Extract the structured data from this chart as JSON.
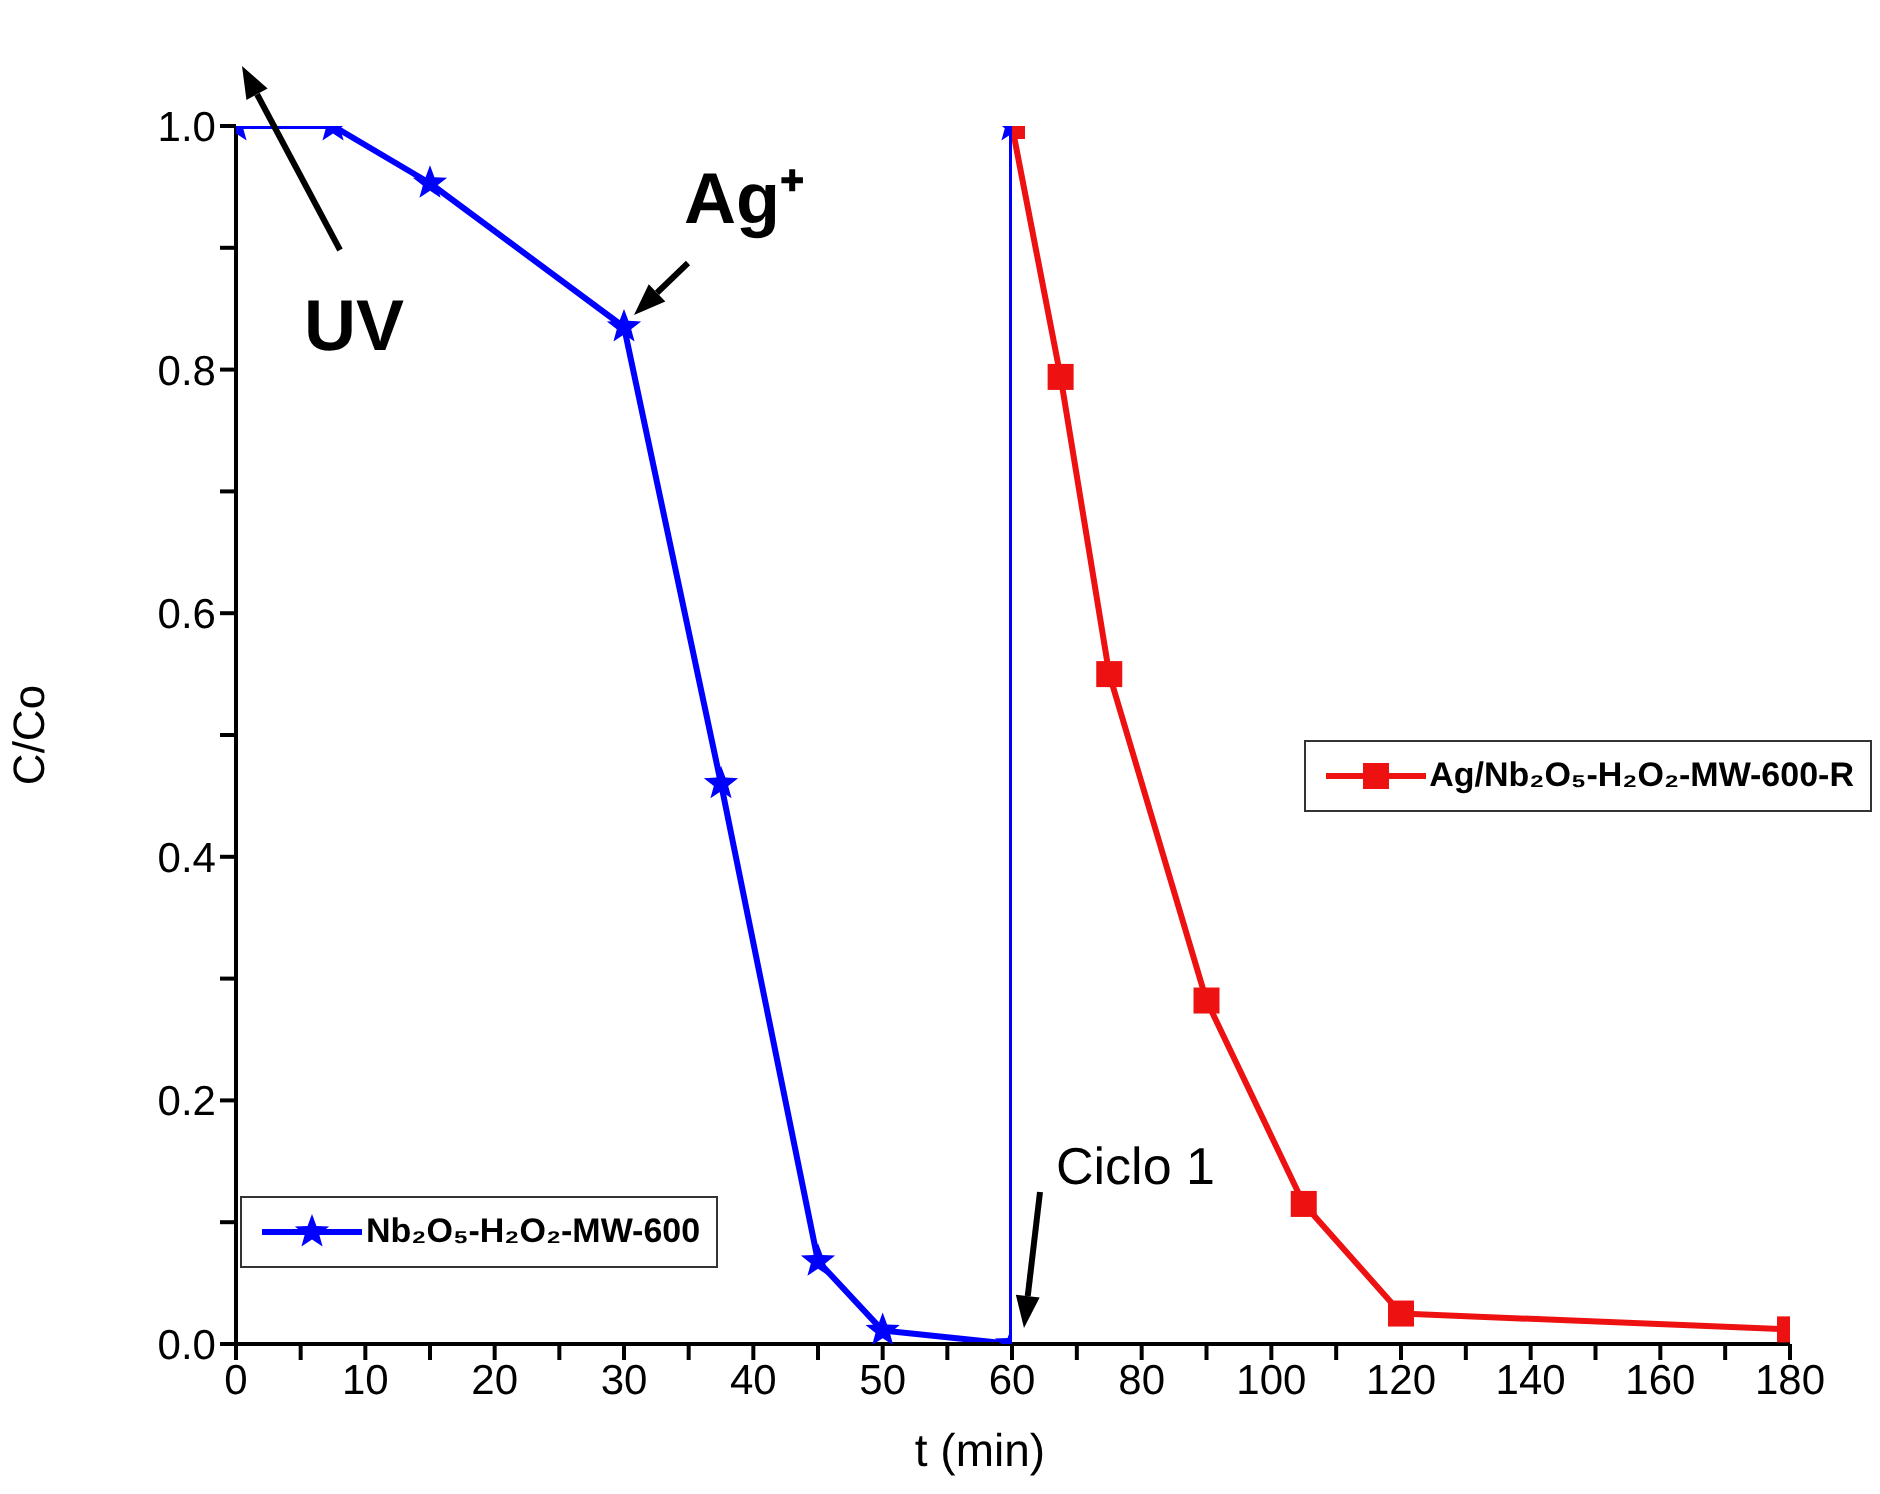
{
  "chart_data": [
    {
      "type": "line",
      "ylabel": "C/Co",
      "xlabel": "t (min)",
      "xlim": [
        0,
        60
      ],
      "xticks": [
        0,
        {
          "value": 5,
          "label": null
        },
        10,
        {
          "value": 15,
          "label": null
        },
        20,
        {
          "value": 25,
          "label": null
        },
        30,
        {
          "value": 35,
          "label": null
        },
        40,
        {
          "value": 45,
          "label": null
        },
        50,
        {
          "value": 55,
          "label": null
        },
        60
      ],
      "ylim": [
        0,
        1
      ],
      "yticks": [
        {
          "value": 0,
          "label": "0.0"
        },
        {
          "value": 0.1,
          "label": null
        },
        0.2,
        {
          "value": 0.3,
          "label": null
        },
        0.4,
        {
          "value": 0.5,
          "label": null
        },
        0.6,
        {
          "value": 0.7,
          "label": null
        },
        0.8,
        {
          "value": 0.9,
          "label": null
        },
        {
          "value": 1,
          "label": "1.0"
        }
      ],
      "grid": false,
      "legend": "bottom left",
      "marker": "star",
      "line_style": "solid",
      "series": [
        {
          "name": "Nb₂O₅-H₂O₂-MW-600",
          "color": "#0000ff",
          "x": [
            0,
            7.5,
            15,
            30,
            37.5,
            45,
            50,
            60,
            60
          ],
          "values": [
            1.0,
            1.0,
            0.953,
            0.835,
            0.46,
            0.068,
            0.011,
            0.0,
            1.0
          ]
        }
      ],
      "annotations": [
        "UV",
        {
          "text": "Ag⁺",
          "x": 30,
          "y": 0.835
        }
      ]
    },
    {
      "type": "line",
      "xlim": [
        60,
        180
      ],
      "xticks": [
        {
          "value": 60,
          "label": null
        },
        {
          "value": 70,
          "label": null
        },
        80,
        {
          "value": 90,
          "label": null
        },
        100,
        {
          "value": 110,
          "label": null
        },
        120,
        {
          "value": 130,
          "label": null
        },
        140,
        {
          "value": 150,
          "label": null
        },
        160,
        {
          "value": 170,
          "label": null
        },
        180
      ],
      "ylim": [
        0,
        1
      ],
      "yticks": [
        0,
        0.2,
        0.4,
        0.6,
        0.8,
        1
      ],
      "tick_labels": "x",
      "grid": false,
      "legend": "right",
      "marker": "square",
      "line_style": "solid",
      "series": [
        {
          "name": "Ag/Nb₂O₅-H₂O₂-MW-600-R",
          "color": "#ee1111",
          "x": [
            60,
            67.5,
            75,
            90,
            105,
            120,
            180
          ],
          "values": [
            1.0,
            0.794,
            0.55,
            0.282,
            0.115,
            0.025,
            0.012
          ]
        }
      ],
      "annotations": [
        "Ciclo 1"
      ]
    }
  ]
}
